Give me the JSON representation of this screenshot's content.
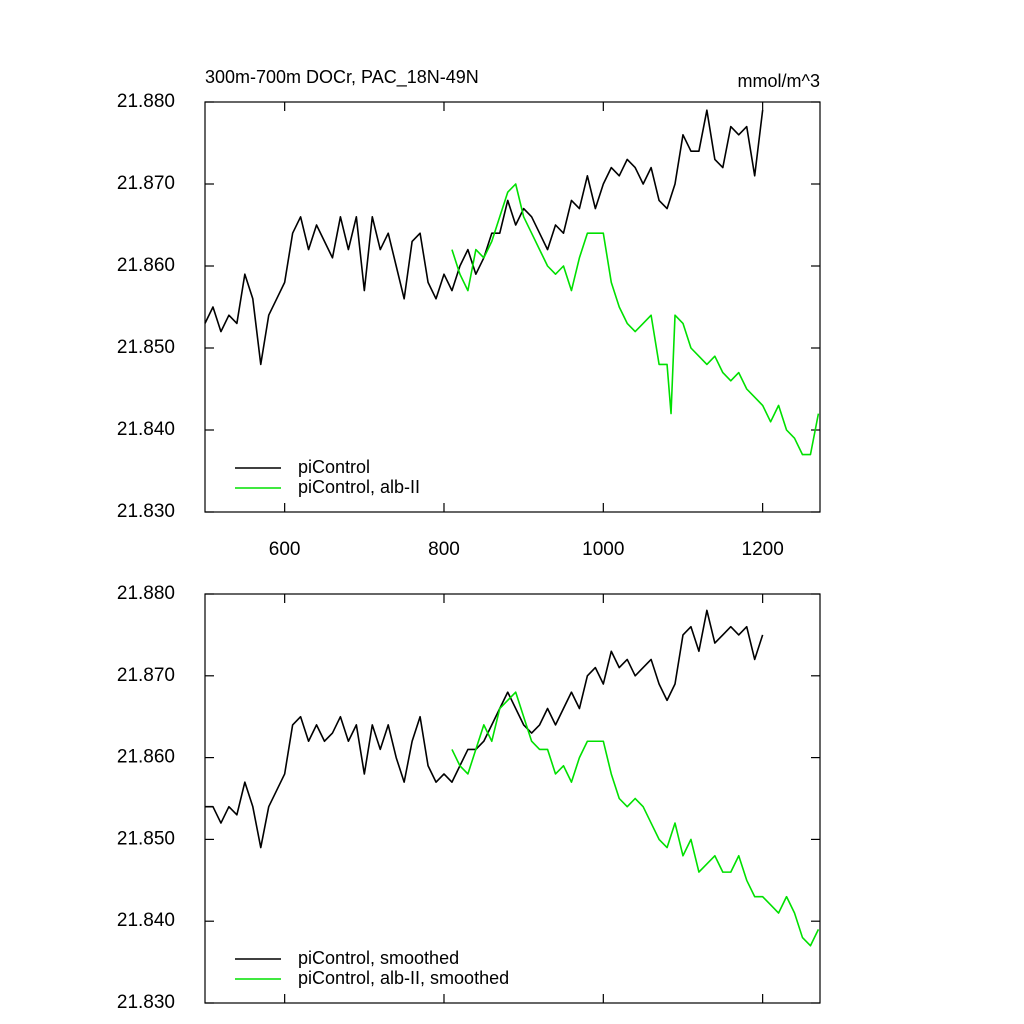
{
  "chart_data": [
    {
      "type": "line",
      "title": "300m-700m DOCr, PAC_18N-49N",
      "units": "mmol/m^3",
      "xlim": [
        500,
        1272
      ],
      "ylim": [
        21.83,
        21.88
      ],
      "xticks": [
        600,
        800,
        1000,
        1200
      ],
      "xtick_labels": true,
      "yticks": [
        {
          "value": 21.83,
          "label": "21.830"
        },
        {
          "value": 21.84,
          "label": "21.840"
        },
        {
          "value": 21.85,
          "label": "21.850"
        },
        {
          "value": 21.86,
          "label": "21.860"
        },
        {
          "value": 21.87,
          "label": "21.870"
        },
        {
          "value": 21.88,
          "label": "21.880"
        }
      ],
      "legend": "lower left",
      "series": [
        {
          "name": "piControl",
          "color": "#000000",
          "x": [
            500,
            510,
            520,
            530,
            540,
            550,
            560,
            570,
            580,
            590,
            600,
            610,
            620,
            630,
            640,
            650,
            660,
            670,
            680,
            690,
            700,
            710,
            720,
            730,
            740,
            750,
            760,
            770,
            780,
            790,
            800,
            810,
            820,
            830,
            840,
            850,
            860,
            870,
            880,
            890,
            900,
            910,
            920,
            930,
            940,
            950,
            960,
            970,
            980,
            990,
            1000,
            1010,
            1020,
            1030,
            1040,
            1050,
            1060,
            1070,
            1080,
            1090,
            1100,
            1110,
            1120,
            1130,
            1140,
            1150,
            1160,
            1170,
            1180,
            1190,
            1200
          ],
          "values": [
            21.853,
            21.855,
            21.852,
            21.854,
            21.853,
            21.859,
            21.856,
            21.848,
            21.854,
            21.856,
            21.858,
            21.864,
            21.866,
            21.862,
            21.865,
            21.863,
            21.861,
            21.866,
            21.862,
            21.866,
            21.857,
            21.866,
            21.862,
            21.864,
            21.86,
            21.856,
            21.863,
            21.864,
            21.858,
            21.856,
            21.859,
            21.857,
            21.86,
            21.862,
            21.859,
            21.861,
            21.864,
            21.864,
            21.868,
            21.865,
            21.867,
            21.866,
            21.864,
            21.862,
            21.865,
            21.864,
            21.868,
            21.867,
            21.871,
            21.867,
            21.87,
            21.872,
            21.871,
            21.873,
            21.872,
            21.87,
            21.872,
            21.868,
            21.867,
            21.87,
            21.876,
            21.874,
            21.874,
            21.879,
            21.873,
            21.872,
            21.877,
            21.876,
            21.877,
            21.871,
            21.879
          ]
        },
        {
          "name": "piControl, alb-II",
          "color": "#00e000",
          "x": [
            810,
            820,
            830,
            840,
            850,
            860,
            870,
            880,
            890,
            900,
            910,
            920,
            930,
            940,
            950,
            960,
            970,
            980,
            990,
            1000,
            1010,
            1020,
            1030,
            1040,
            1050,
            1060,
            1070,
            1080,
            1085,
            1090,
            1100,
            1110,
            1120,
            1130,
            1140,
            1150,
            1160,
            1170,
            1180,
            1190,
            1200,
            1210,
            1220,
            1230,
            1240,
            1250,
            1260,
            1270
          ],
          "values": [
            21.862,
            21.859,
            21.857,
            21.862,
            21.861,
            21.863,
            21.866,
            21.869,
            21.87,
            21.866,
            21.864,
            21.862,
            21.86,
            21.859,
            21.86,
            21.857,
            21.861,
            21.864,
            21.864,
            21.864,
            21.858,
            21.855,
            21.853,
            21.852,
            21.853,
            21.854,
            21.848,
            21.848,
            21.842,
            21.854,
            21.853,
            21.85,
            21.849,
            21.848,
            21.849,
            21.847,
            21.846,
            21.847,
            21.845,
            21.844,
            21.843,
            21.841,
            21.843,
            21.84,
            21.839,
            21.837,
            21.837,
            21.842
          ]
        }
      ]
    },
    {
      "type": "line",
      "xlim": [
        500,
        1272
      ],
      "ylim": [
        21.83,
        21.88
      ],
      "xticks": [
        600,
        800,
        1000,
        1200
      ],
      "xtick_labels": false,
      "yticks": [
        {
          "value": 21.83,
          "label": "21.830"
        },
        {
          "value": 21.84,
          "label": "21.840"
        },
        {
          "value": 21.85,
          "label": "21.850"
        },
        {
          "value": 21.86,
          "label": "21.860"
        },
        {
          "value": 21.87,
          "label": "21.870"
        },
        {
          "value": 21.88,
          "label": "21.880"
        }
      ],
      "legend": "lower left",
      "series": [
        {
          "name": "piControl, smoothed",
          "color": "#000000",
          "x": [
            500,
            510,
            520,
            530,
            540,
            550,
            560,
            570,
            580,
            590,
            600,
            610,
            620,
            630,
            640,
            650,
            660,
            670,
            680,
            690,
            700,
            710,
            720,
            730,
            740,
            750,
            760,
            770,
            780,
            790,
            800,
            810,
            820,
            830,
            840,
            850,
            860,
            870,
            880,
            890,
            900,
            910,
            920,
            930,
            940,
            950,
            960,
            970,
            980,
            990,
            1000,
            1010,
            1020,
            1030,
            1040,
            1050,
            1060,
            1070,
            1080,
            1090,
            1100,
            1110,
            1120,
            1130,
            1140,
            1150,
            1160,
            1170,
            1180,
            1190,
            1200
          ],
          "values": [
            21.854,
            21.854,
            21.852,
            21.854,
            21.853,
            21.857,
            21.854,
            21.849,
            21.854,
            21.856,
            21.858,
            21.864,
            21.865,
            21.862,
            21.864,
            21.862,
            21.863,
            21.865,
            21.862,
            21.864,
            21.858,
            21.864,
            21.861,
            21.864,
            21.86,
            21.857,
            21.862,
            21.865,
            21.859,
            21.857,
            21.858,
            21.857,
            21.859,
            21.861,
            21.861,
            21.862,
            21.864,
            21.866,
            21.868,
            21.866,
            21.864,
            21.863,
            21.864,
            21.866,
            21.864,
            21.866,
            21.868,
            21.866,
            21.87,
            21.871,
            21.869,
            21.873,
            21.871,
            21.872,
            21.87,
            21.871,
            21.872,
            21.869,
            21.867,
            21.869,
            21.875,
            21.876,
            21.873,
            21.878,
            21.874,
            21.875,
            21.876,
            21.875,
            21.876,
            21.872,
            21.875
          ]
        },
        {
          "name": "piControl, alb-II, smoothed",
          "color": "#00e000",
          "x": [
            810,
            820,
            830,
            840,
            850,
            860,
            870,
            880,
            890,
            900,
            910,
            920,
            930,
            940,
            950,
            960,
            970,
            980,
            990,
            1000,
            1010,
            1020,
            1030,
            1040,
            1050,
            1060,
            1070,
            1080,
            1090,
            1100,
            1110,
            1120,
            1130,
            1140,
            1150,
            1160,
            1170,
            1180,
            1190,
            1200,
            1210,
            1220,
            1230,
            1240,
            1250,
            1260,
            1270
          ],
          "values": [
            21.861,
            21.859,
            21.858,
            21.861,
            21.864,
            21.862,
            21.866,
            21.867,
            21.868,
            21.865,
            21.862,
            21.861,
            21.861,
            21.858,
            21.859,
            21.857,
            21.86,
            21.862,
            21.862,
            21.862,
            21.858,
            21.855,
            21.854,
            21.855,
            21.854,
            21.852,
            21.85,
            21.849,
            21.852,
            21.848,
            21.85,
            21.846,
            21.847,
            21.848,
            21.846,
            21.846,
            21.848,
            21.845,
            21.843,
            21.843,
            21.842,
            21.841,
            21.843,
            21.841,
            21.838,
            21.837,
            21.839
          ]
        }
      ]
    }
  ]
}
